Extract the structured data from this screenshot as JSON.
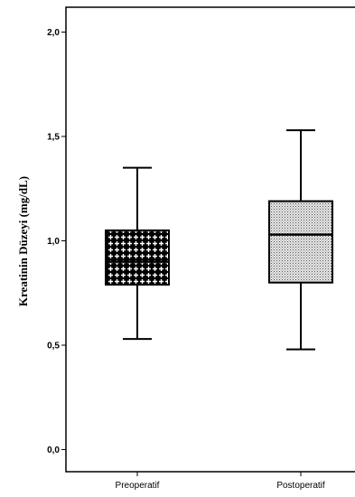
{
  "chart_data": {
    "type": "boxplot",
    "ylabel": "Kreatinin Düzeyi (mg/dL)",
    "ylim": [
      0.0,
      2.0
    ],
    "y_ticks": [
      {
        "value": 0.0,
        "label": "0,0"
      },
      {
        "value": 0.5,
        "label": "0,5"
      },
      {
        "value": 1.0,
        "label": "1,0"
      },
      {
        "value": 1.5,
        "label": "1,5"
      },
      {
        "value": 2.0,
        "label": "2,0"
      }
    ],
    "categories": [
      "Preoperatif",
      "Postoperatif"
    ],
    "boxes": [
      {
        "category": "Preoperatif",
        "min": 0.53,
        "q1": 0.79,
        "median": 0.9,
        "q3": 1.05,
        "max": 1.35,
        "fill": "cross-hatch"
      },
      {
        "category": "Postoperatif",
        "min": 0.48,
        "q1": 0.8,
        "median": 1.03,
        "q3": 1.19,
        "max": 1.53,
        "fill": "dot-stipple"
      }
    ],
    "grid": false,
    "legend": "none"
  }
}
